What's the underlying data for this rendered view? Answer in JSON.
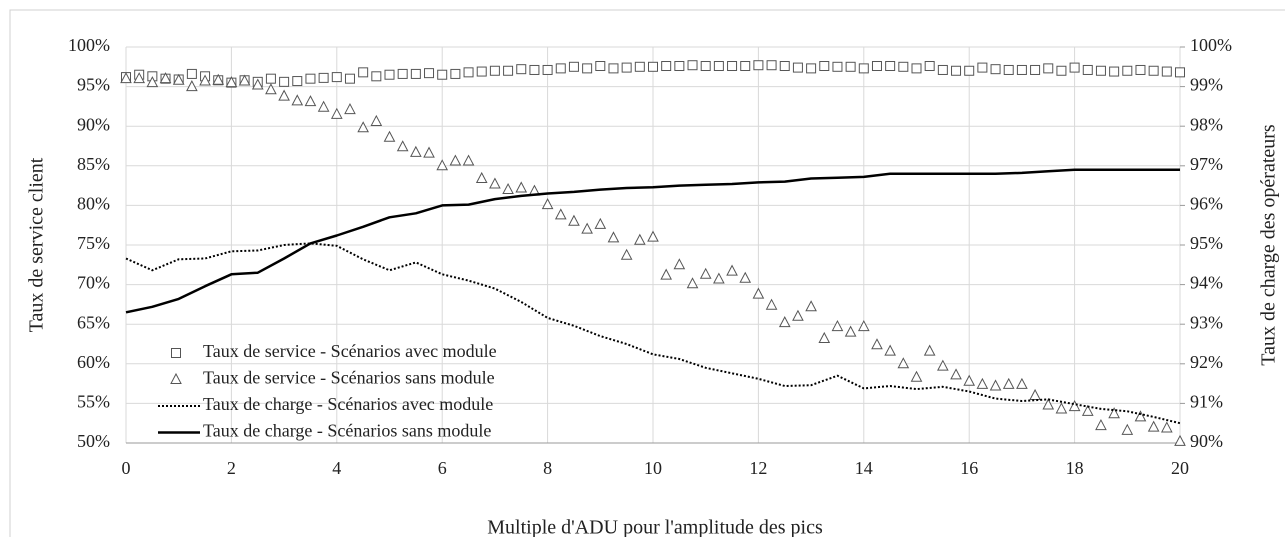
{
  "chart_data": {
    "type": "combo",
    "xlabel": "Multiple d'ADU pour l'amplitude des pics",
    "ylabel": "Taux de service client",
    "y2label": "Taux de charge des opérateurs",
    "xlim": [
      0,
      20
    ],
    "xticks": [
      0,
      2,
      4,
      6,
      8,
      10,
      12,
      14,
      16,
      18,
      20
    ],
    "ylim": [
      50,
      100
    ],
    "yticks": [
      {
        "value": 50,
        "label": "50%"
      },
      {
        "value": 55,
        "label": "55%"
      },
      {
        "value": 60,
        "label": "60%"
      },
      {
        "value": 65,
        "label": "65%"
      },
      {
        "value": 70,
        "label": "70%"
      },
      {
        "value": 75,
        "label": "75%"
      },
      {
        "value": 80,
        "label": "80%"
      },
      {
        "value": 85,
        "label": "85%"
      },
      {
        "value": 90,
        "label": "90%"
      },
      {
        "value": 95,
        "label": "95%"
      },
      {
        "value": 100,
        "label": "100%"
      }
    ],
    "y2lim": [
      90,
      100
    ],
    "y2ticks": [
      {
        "value": 90,
        "label": "90%"
      },
      {
        "value": 91,
        "label": "91%"
      },
      {
        "value": 92,
        "label": "92%"
      },
      {
        "value": 93,
        "label": "93%"
      },
      {
        "value": 94,
        "label": "94%"
      },
      {
        "value": 95,
        "label": "95%"
      },
      {
        "value": 96,
        "label": "96%"
      },
      {
        "value": 97,
        "label": "97%"
      },
      {
        "value": 98,
        "label": "98%"
      },
      {
        "value": 99,
        "label": "99%"
      },
      {
        "value": 100,
        "label": "100%"
      }
    ],
    "grid": true,
    "legend": "lower left",
    "series": [
      {
        "name": "Taux de service - Scénarios avec module",
        "kind": "scatter",
        "marker": "square",
        "color": "#555555",
        "x": [
          0,
          0.25,
          0.5,
          0.75,
          1,
          1.25,
          1.5,
          1.75,
          2,
          2.25,
          2.5,
          2.75,
          3,
          3.25,
          3.5,
          3.75,
          4,
          4.25,
          4.5,
          4.75,
          5,
          5.25,
          5.5,
          5.75,
          6,
          6.25,
          6.5,
          6.75,
          7,
          7.25,
          7.5,
          7.75,
          8,
          8.25,
          8.5,
          8.75,
          9,
          9.25,
          9.5,
          9.75,
          10,
          10.25,
          10.5,
          10.75,
          11,
          11.25,
          11.5,
          11.75,
          12,
          12.25,
          12.5,
          12.75,
          13,
          13.25,
          13.5,
          13.75,
          14,
          14.25,
          14.5,
          14.75,
          15,
          15.25,
          15.5,
          15.75,
          16,
          16.25,
          16.5,
          16.75,
          17,
          17.25,
          17.5,
          17.75,
          18,
          18.25,
          18.5,
          18.75,
          19,
          19.25,
          19.5,
          19.75,
          20
        ],
        "values": [
          96.2,
          96.5,
          96.3,
          96.0,
          95.9,
          96.6,
          96.3,
          95.8,
          95.5,
          95.8,
          95.6,
          96.0,
          95.6,
          95.7,
          96.0,
          96.1,
          96.2,
          96.0,
          96.8,
          96.3,
          96.5,
          96.6,
          96.6,
          96.7,
          96.5,
          96.6,
          96.8,
          96.9,
          97.0,
          97.0,
          97.2,
          97.1,
          97.1,
          97.3,
          97.5,
          97.3,
          97.6,
          97.3,
          97.4,
          97.5,
          97.5,
          97.6,
          97.6,
          97.7,
          97.6,
          97.6,
          97.6,
          97.6,
          97.7,
          97.7,
          97.6,
          97.4,
          97.3,
          97.6,
          97.5,
          97.5,
          97.3,
          97.6,
          97.6,
          97.5,
          97.3,
          97.6,
          97.1,
          97.0,
          97.0,
          97.4,
          97.2,
          97.1,
          97.1,
          97.1,
          97.3,
          97.0,
          97.4,
          97.1,
          97.0,
          96.9,
          97.0,
          97.1,
          97.0,
          96.9,
          96.8
        ]
      },
      {
        "name": "Taux de service - Scénarios sans module",
        "kind": "scatter",
        "marker": "triangle",
        "color": "#555555",
        "x": [
          0,
          0.25,
          0.5,
          0.75,
          1,
          1.25,
          1.5,
          1.75,
          2,
          2.25,
          2.5,
          2.75,
          3,
          3.25,
          3.5,
          3.75,
          4,
          4.25,
          4.5,
          4.75,
          5,
          5.25,
          5.5,
          5.75,
          6,
          6.25,
          6.5,
          6.75,
          7,
          7.25,
          7.5,
          7.75,
          8,
          8.25,
          8.5,
          8.75,
          9,
          9.25,
          9.5,
          9.75,
          10,
          10.25,
          10.5,
          10.75,
          11,
          11.25,
          11.5,
          11.75,
          12,
          12.25,
          12.5,
          12.75,
          13,
          13.25,
          13.5,
          13.75,
          14,
          14.25,
          14.5,
          14.75,
          15,
          15.25,
          15.5,
          15.75,
          16,
          16.25,
          16.5,
          16.75,
          17,
          17.25,
          17.5,
          17.75,
          18,
          18.25,
          18.5,
          18.75,
          19,
          19.25,
          19.5,
          19.75,
          20
        ],
        "values": [
          96,
          96,
          95.5,
          96,
          95.8,
          95,
          95.7,
          95.8,
          95.5,
          95.7,
          95.2,
          94.6,
          93.8,
          93.2,
          93.1,
          92.4,
          91.5,
          92.1,
          89.8,
          90.6,
          88.6,
          87.4,
          86.7,
          86.6,
          85,
          85.6,
          85.6,
          83.4,
          82.7,
          82,
          82.2,
          81.8,
          80.1,
          78.8,
          78,
          77,
          77.6,
          75.9,
          73.7,
          75.6,
          76,
          71.2,
          72.5,
          70.1,
          71.3,
          70.7,
          71.7,
          70.8,
          68.8,
          67.4,
          65.2,
          66,
          67.2,
          63.2,
          64.7,
          64,
          64.7,
          62.4,
          61.6,
          60,
          58.3,
          61.6,
          59.7,
          58.6,
          57.8,
          57.4,
          57.2,
          57.4,
          57.4,
          56,
          54.8,
          54.3,
          54.6,
          54,
          52.2,
          53.7,
          51.6,
          53.3,
          52,
          51.9,
          50.2
        ]
      },
      {
        "name": "Taux de charge - Scénarios avec module",
        "kind": "line",
        "style": "dotted",
        "axis": "y2",
        "color": "#000000",
        "x": [
          0,
          0.5,
          1,
          1.5,
          2,
          2.5,
          3,
          3.5,
          4,
          4.5,
          5,
          5.5,
          6,
          6.5,
          7,
          7.5,
          8,
          8.5,
          9,
          9.5,
          10,
          10.5,
          11,
          11.5,
          12,
          12.5,
          13,
          13.5,
          14,
          14.5,
          15,
          15.5,
          16,
          16.5,
          17,
          17.5,
          18,
          18.5,
          19,
          19.5,
          20
        ],
        "values": [
          94.66,
          94.36,
          94.64,
          94.66,
          94.84,
          94.86,
          95,
          95.04,
          94.98,
          94.64,
          94.36,
          94.56,
          94.26,
          94.1,
          93.9,
          93.56,
          93.16,
          92.96,
          92.7,
          92.5,
          92.24,
          92.12,
          91.9,
          91.76,
          91.62,
          91.44,
          91.46,
          91.7,
          91.38,
          91.44,
          91.36,
          91.42,
          91.3,
          91.12,
          91.06,
          91.1,
          90.98,
          90.86,
          90.8,
          90.66,
          90.5
        ]
      },
      {
        "name": "Taux de charge - Scénarios sans module",
        "kind": "line",
        "style": "solid",
        "axis": "y2",
        "color": "#000000",
        "x": [
          0,
          0.5,
          1,
          1.5,
          2,
          2.5,
          3,
          3.5,
          4,
          4.5,
          5,
          5.5,
          6,
          6.5,
          7,
          7.5,
          8,
          8.5,
          9,
          9.5,
          10,
          10.5,
          11,
          11.5,
          12,
          12.5,
          13,
          13.5,
          14,
          14.5,
          15,
          15.5,
          16,
          16.5,
          17,
          17.5,
          18,
          18.5,
          19,
          19.5,
          20
        ],
        "values": [
          93.3,
          93.44,
          93.64,
          93.96,
          94.26,
          94.3,
          94.66,
          95.04,
          95.24,
          95.46,
          95.7,
          95.8,
          96,
          96.02,
          96.16,
          96.24,
          96.3,
          96.34,
          96.4,
          96.44,
          96.46,
          96.5,
          96.52,
          96.54,
          96.58,
          96.6,
          96.68,
          96.7,
          96.72,
          96.8,
          96.8,
          96.8,
          96.8,
          96.8,
          96.82,
          96.86,
          96.9,
          96.9,
          96.9,
          96.9,
          96.9
        ]
      }
    ]
  }
}
